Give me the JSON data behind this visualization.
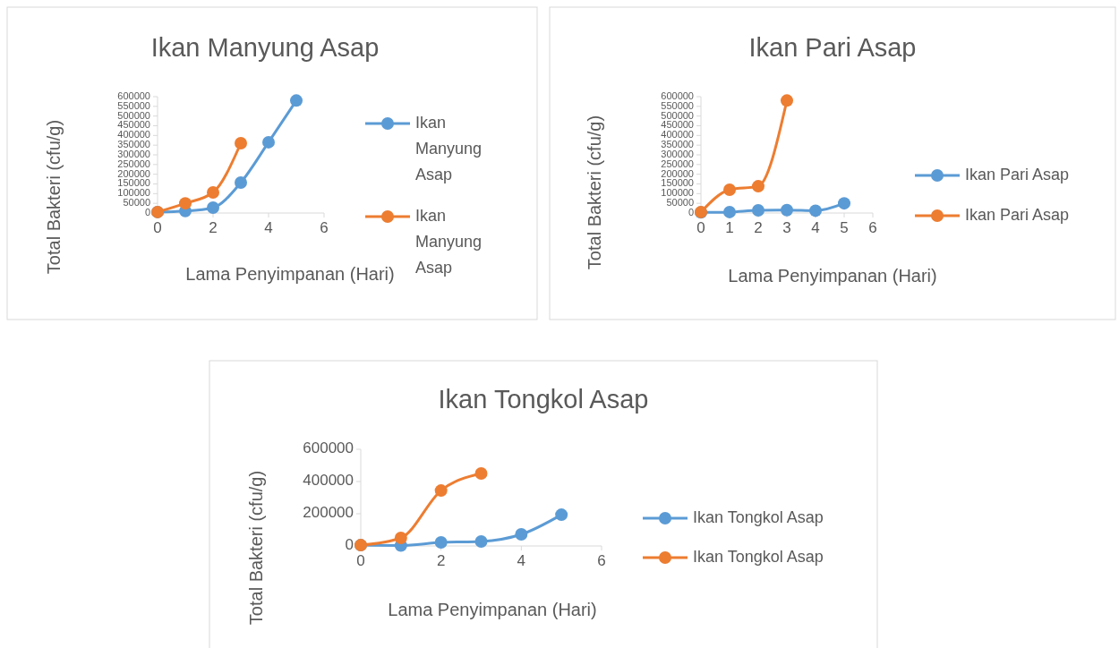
{
  "chart_data": [
    {
      "type": "line",
      "title": "Ikan Manyung Asap",
      "xlabel": "Lama Penyimpanan (Hari)",
      "ylabel": "Total Bakteri (cfu/g)",
      "xlim": [
        0,
        6
      ],
      "xticks": [
        0,
        2,
        4,
        6
      ],
      "ylim": [
        0,
        600000
      ],
      "yticks": [
        0,
        50000,
        100000,
        150000,
        200000,
        250000,
        300000,
        350000,
        400000,
        450000,
        500000,
        550000,
        600000
      ],
      "legend": "right",
      "marker": "circle",
      "grid": false,
      "series": [
        {
          "name": "Ikan Manyung Asap",
          "color": "#5b9bd5",
          "x": [
            0,
            1,
            2,
            3,
            4,
            5
          ],
          "values": [
            5000,
            10000,
            28000,
            157000,
            365000,
            580000
          ]
        },
        {
          "name": "Ikan Manyung Asap",
          "color": "#ed7d31",
          "x": [
            0,
            1,
            2,
            3
          ],
          "values": [
            5000,
            50000,
            106000,
            360000
          ]
        }
      ]
    },
    {
      "type": "line",
      "title": "Ikan Pari Asap",
      "xlabel": "Lama Penyimpanan (Hari)",
      "ylabel": "Total Bakteri (cfu/g)",
      "xlim": [
        0,
        6
      ],
      "xticks": [
        0,
        1,
        2,
        3,
        4,
        5,
        6
      ],
      "ylim": [
        0,
        600000
      ],
      "yticks": [
        0,
        50000,
        100000,
        150000,
        200000,
        250000,
        300000,
        350000,
        400000,
        450000,
        500000,
        550000,
        600000
      ],
      "legend": "right",
      "marker": "circle",
      "grid": false,
      "series": [
        {
          "name": "Ikan Pari Asap",
          "color": "#5b9bd5",
          "x": [
            0,
            1,
            2,
            3,
            4,
            5
          ],
          "values": [
            3000,
            5000,
            14000,
            15000,
            12000,
            50000
          ]
        },
        {
          "name": "Ikan Pari Asap",
          "color": "#ed7d31",
          "x": [
            0,
            1,
            2,
            3
          ],
          "values": [
            5000,
            120000,
            138000,
            580000
          ]
        }
      ]
    },
    {
      "type": "line",
      "title": "Ikan Tongkol Asap",
      "xlabel": "Lama Penyimpanan (Hari)",
      "ylabel": "Total Bakteri (cfu/g)",
      "xlim": [
        0,
        6
      ],
      "xticks": [
        0,
        2,
        4,
        6
      ],
      "ylim": [
        0,
        600000
      ],
      "yticks": [
        0,
        200000,
        400000,
        600000
      ],
      "legend": "right",
      "marker": "circle",
      "grid": false,
      "series": [
        {
          "name": "Ikan Tongkol Asap",
          "color": "#5b9bd5",
          "x": [
            0,
            1,
            2,
            3,
            4,
            5
          ],
          "values": [
            5000,
            3000,
            22000,
            28000,
            72000,
            194000
          ]
        },
        {
          "name": "Ikan Tongkol Asap",
          "color": "#ed7d31",
          "x": [
            0,
            1,
            2,
            3
          ],
          "values": [
            5000,
            50000,
            344000,
            450000
          ]
        }
      ]
    }
  ]
}
